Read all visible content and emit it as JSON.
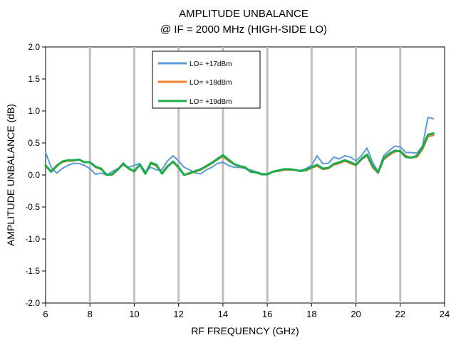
{
  "chart_data": {
    "type": "line",
    "title": "AMPLITUDE UNBALANCE",
    "subtitle": "@ IF = 2000 MHz (HIGH-SIDE LO)",
    "xlabel": "RF FREQUENCY (GHz)",
    "ylabel": "AMPLITUDE UNBALANCE (dB)",
    "xlim": [
      6,
      24
    ],
    "ylim": [
      -2.0,
      2.0
    ],
    "xticks": [
      6,
      8,
      10,
      12,
      14,
      16,
      18,
      20,
      22,
      24
    ],
    "yticks": [
      2.0,
      1.5,
      1.0,
      0.5,
      0.0,
      -0.5,
      -1.0,
      -1.5,
      -2.0
    ],
    "xtick_labels": [
      "6",
      "8",
      "10",
      "12",
      "14",
      "16",
      "18",
      "20",
      "22",
      "24"
    ],
    "ytick_labels": [
      "2.0",
      "1.5",
      "1.0",
      "0.5",
      "0.0",
      "-0.5",
      "-1.0",
      "-1.5",
      "-2.0"
    ],
    "grid": "vertical",
    "legend_position": "top-left",
    "series": [
      {
        "name": "LO= +17dBm",
        "color": "#5b9bd5",
        "x": [
          6.0,
          6.25,
          6.5,
          6.75,
          7.0,
          7.25,
          7.5,
          7.75,
          8.0,
          8.25,
          8.5,
          8.75,
          9.0,
          9.25,
          9.5,
          9.75,
          10.0,
          10.25,
          10.5,
          10.75,
          11.0,
          11.25,
          11.5,
          11.75,
          12.0,
          12.25,
          12.5,
          12.75,
          13.0,
          13.25,
          13.5,
          13.75,
          14.0,
          14.25,
          14.5,
          14.75,
          15.0,
          15.25,
          15.5,
          15.75,
          16.0,
          16.25,
          16.5,
          16.75,
          17.0,
          17.25,
          17.5,
          17.75,
          18.0,
          18.25,
          18.5,
          18.75,
          19.0,
          19.25,
          19.5,
          19.75,
          20.0,
          20.25,
          20.5,
          20.75,
          21.0,
          21.25,
          21.5,
          21.75,
          22.0,
          22.25,
          22.5,
          22.75,
          23.0,
          23.25,
          23.5
        ],
        "values": [
          0.35,
          0.12,
          0.03,
          0.1,
          0.15,
          0.18,
          0.18,
          0.15,
          0.1,
          0.01,
          0.03,
          0.0,
          0.05,
          0.1,
          0.15,
          0.12,
          0.15,
          0.18,
          0.05,
          0.12,
          0.08,
          0.08,
          0.22,
          0.3,
          0.22,
          0.12,
          0.08,
          0.03,
          0.02,
          0.08,
          0.12,
          0.18,
          0.2,
          0.15,
          0.12,
          0.12,
          0.1,
          0.08,
          0.05,
          0.02,
          0.02,
          0.05,
          0.06,
          0.08,
          0.08,
          0.08,
          0.07,
          0.1,
          0.15,
          0.3,
          0.18,
          0.18,
          0.28,
          0.25,
          0.3,
          0.28,
          0.22,
          0.3,
          0.42,
          0.2,
          0.05,
          0.3,
          0.38,
          0.45,
          0.44,
          0.35,
          0.35,
          0.34,
          0.45,
          0.9,
          0.88
        ]
      },
      {
        "name": "LO= +18dBm",
        "color": "#ed7d31",
        "x": [
          6.0,
          6.25,
          6.5,
          6.75,
          7.0,
          7.25,
          7.5,
          7.75,
          8.0,
          8.25,
          8.5,
          8.75,
          9.0,
          9.25,
          9.5,
          9.75,
          10.0,
          10.25,
          10.5,
          10.75,
          11.0,
          11.25,
          11.5,
          11.75,
          12.0,
          12.25,
          12.5,
          12.75,
          13.0,
          13.25,
          13.5,
          13.75,
          14.0,
          14.25,
          14.5,
          14.75,
          15.0,
          15.25,
          15.5,
          15.75,
          16.0,
          16.25,
          16.5,
          16.75,
          17.0,
          17.25,
          17.5,
          17.75,
          18.0,
          18.25,
          18.5,
          18.75,
          19.0,
          19.25,
          19.5,
          19.75,
          20.0,
          20.25,
          20.5,
          20.75,
          21.0,
          21.25,
          21.5,
          21.75,
          22.0,
          22.25,
          22.5,
          22.75,
          23.0,
          23.25,
          23.5
        ],
        "values": [
          0.14,
          0.06,
          0.15,
          0.2,
          0.22,
          0.22,
          0.24,
          0.2,
          0.2,
          0.12,
          0.09,
          0.01,
          0.0,
          0.08,
          0.17,
          0.1,
          0.05,
          0.16,
          0.02,
          0.18,
          0.14,
          0.03,
          0.14,
          0.2,
          0.11,
          0.0,
          0.02,
          0.05,
          0.08,
          0.13,
          0.18,
          0.24,
          0.29,
          0.22,
          0.17,
          0.13,
          0.12,
          0.05,
          0.04,
          0.01,
          0.01,
          0.05,
          0.06,
          0.08,
          0.08,
          0.08,
          0.06,
          0.07,
          0.11,
          0.14,
          0.09,
          0.1,
          0.16,
          0.18,
          0.22,
          0.18,
          0.15,
          0.24,
          0.3,
          0.12,
          0.03,
          0.24,
          0.31,
          0.36,
          0.38,
          0.3,
          0.27,
          0.28,
          0.4,
          0.6,
          0.62
        ]
      },
      {
        "name": "LO= +19dBm",
        "color": "#1cac4c",
        "x": [
          6.0,
          6.25,
          6.5,
          6.75,
          7.0,
          7.25,
          7.5,
          7.75,
          8.0,
          8.25,
          8.5,
          8.75,
          9.0,
          9.25,
          9.5,
          9.75,
          10.0,
          10.25,
          10.5,
          10.75,
          11.0,
          11.25,
          11.5,
          11.75,
          12.0,
          12.25,
          12.5,
          12.75,
          13.0,
          13.25,
          13.5,
          13.75,
          14.0,
          14.25,
          14.5,
          14.75,
          15.0,
          15.25,
          15.5,
          15.75,
          16.0,
          16.25,
          16.5,
          16.75,
          17.0,
          17.25,
          17.5,
          17.75,
          18.0,
          18.25,
          18.5,
          18.75,
          19.0,
          19.25,
          19.5,
          19.75,
          20.0,
          20.25,
          20.5,
          20.75,
          21.0,
          21.25,
          21.5,
          21.75,
          22.0,
          22.25,
          22.5,
          22.75,
          23.0,
          23.25,
          23.5
        ],
        "values": [
          0.15,
          0.05,
          0.14,
          0.21,
          0.23,
          0.23,
          0.24,
          0.2,
          0.2,
          0.13,
          0.1,
          0.0,
          0.01,
          0.08,
          0.18,
          0.1,
          0.06,
          0.16,
          0.02,
          0.19,
          0.16,
          0.02,
          0.13,
          0.21,
          0.12,
          0.0,
          0.03,
          0.06,
          0.09,
          0.14,
          0.19,
          0.25,
          0.31,
          0.24,
          0.17,
          0.14,
          0.12,
          0.05,
          0.04,
          0.01,
          0.01,
          0.05,
          0.07,
          0.09,
          0.09,
          0.08,
          0.06,
          0.08,
          0.12,
          0.16,
          0.1,
          0.11,
          0.17,
          0.2,
          0.23,
          0.2,
          0.16,
          0.25,
          0.32,
          0.14,
          0.04,
          0.26,
          0.33,
          0.38,
          0.37,
          0.28,
          0.27,
          0.3,
          0.43,
          0.63,
          0.65
        ]
      }
    ]
  }
}
